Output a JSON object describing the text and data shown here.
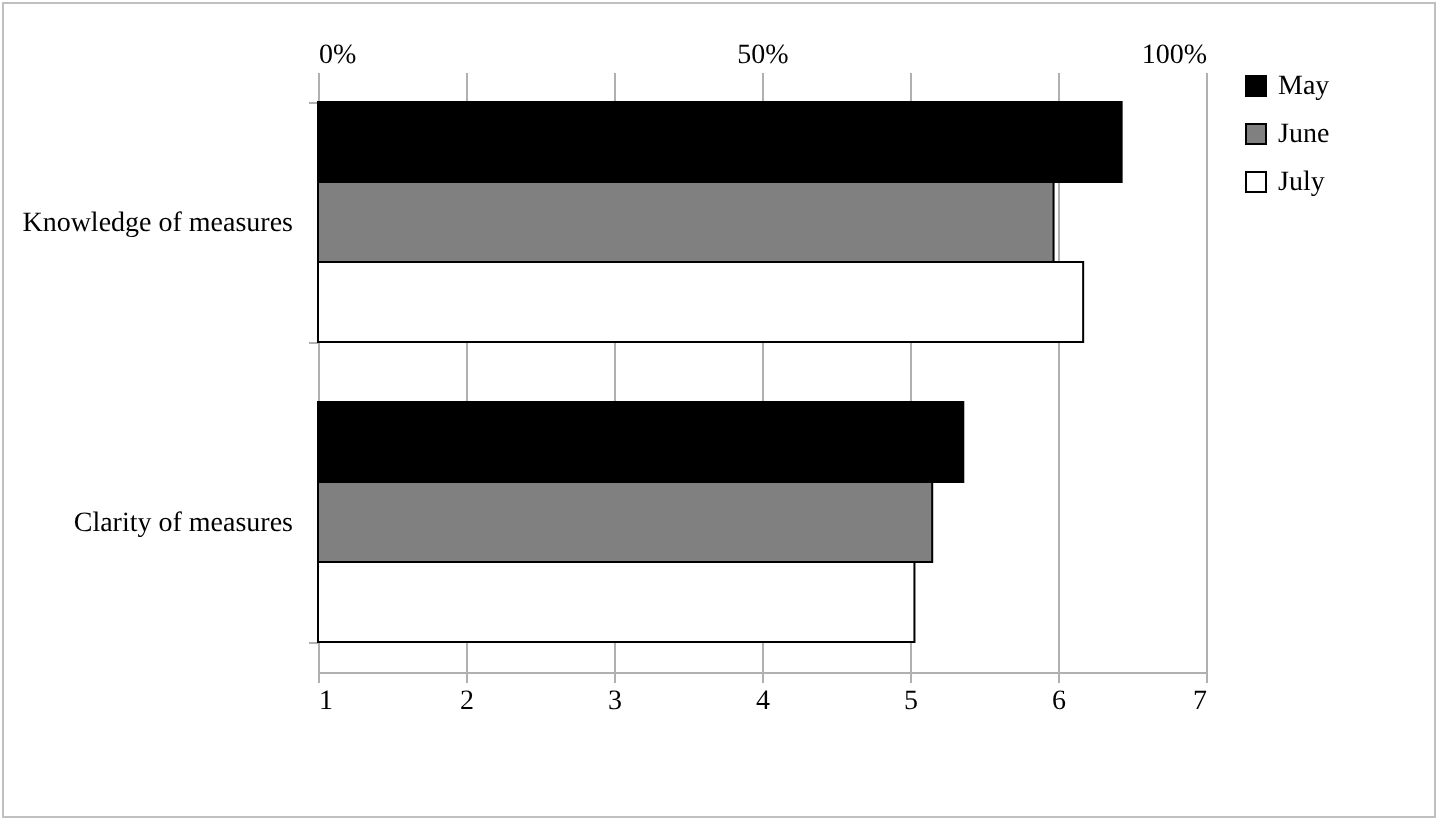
{
  "chart_data": {
    "type": "bar",
    "orientation": "horizontal",
    "categories": [
      "Knowledge of measures",
      "Clarity of measures"
    ],
    "series": [
      {
        "name": "May",
        "color": "#000000",
        "values": [
          6.43,
          5.36
        ]
      },
      {
        "name": "June",
        "color": "#808080",
        "values": [
          5.97,
          5.15
        ]
      },
      {
        "name": "July",
        "color": "#ffffff",
        "values": [
          6.17,
          5.03
        ]
      }
    ],
    "xlim": [
      1,
      7
    ],
    "xticks": [
      1,
      2,
      3,
      4,
      5,
      6,
      7
    ],
    "x2lim": [
      0,
      100
    ],
    "x2ticks": [
      {
        "value": 0,
        "label": "0%"
      },
      {
        "value": 50,
        "label": "50%"
      },
      {
        "value": 100,
        "label": "100%"
      }
    ],
    "grid": "x",
    "legend": "right"
  }
}
